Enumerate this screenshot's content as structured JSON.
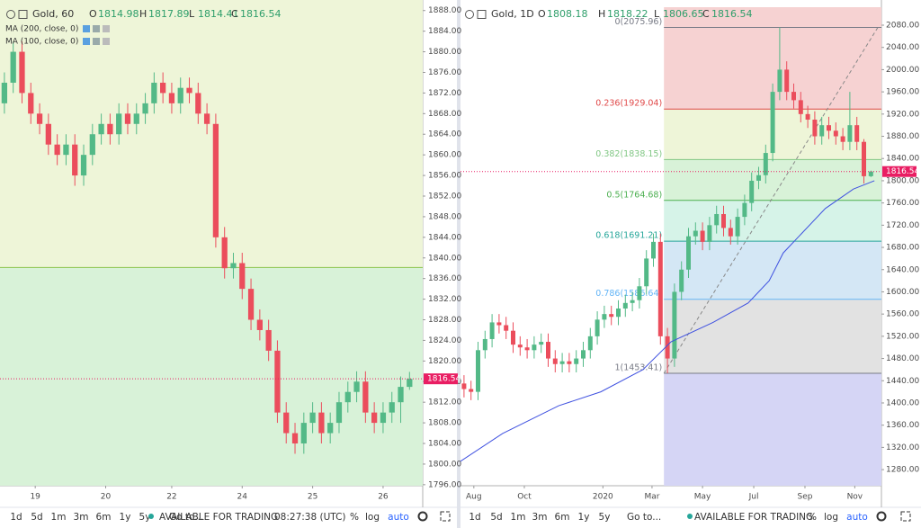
{
  "chart_data": [
    {
      "type": "candlestick",
      "title": "Gold, 60",
      "ohlc_keys": [
        "O",
        "H",
        "L",
        "C"
      ],
      "ohlc": [
        1814.98,
        1817.89,
        1814.41,
        1816.54
      ],
      "indicators": [
        "MA (200, close, 0)",
        "MA (100, close, 0)"
      ],
      "xlim": [
        0,
        48
      ],
      "xticks": [
        {
          "value": 4,
          "label": "19"
        },
        {
          "value": 12,
          "label": "20"
        },
        {
          "value": 19.5,
          "label": "22"
        },
        {
          "value": 27.5,
          "label": "24"
        },
        {
          "value": 35.5,
          "label": "25"
        },
        {
          "value": 43.5,
          "label": "26"
        }
      ],
      "ylim": [
        1795.8,
        1889
      ],
      "yticks": [
        {
          "value": 1796,
          "label": "1796.00"
        },
        {
          "value": 1800,
          "label": "1800.00"
        },
        {
          "value": 1804,
          "label": "1804.00"
        },
        {
          "value": 1808,
          "label": "1808.00"
        },
        {
          "value": 1812,
          "label": "1812.00"
        },
        {
          "value": 1816,
          "label": "1816.00"
        },
        {
          "value": 1820,
          "label": "1820.00"
        },
        {
          "value": 1824,
          "label": "1824.00"
        },
        {
          "value": 1828,
          "label": "1828.00"
        },
        {
          "value": 1832,
          "label": "1832.00"
        },
        {
          "value": 1836,
          "label": "1836.00"
        },
        {
          "value": 1840,
          "label": "1840.00"
        },
        {
          "value": 1844,
          "label": "1844.00"
        },
        {
          "value": 1848,
          "label": "1848.00"
        },
        {
          "value": 1852,
          "label": "1852.00"
        },
        {
          "value": 1856,
          "label": "1856.00"
        },
        {
          "value": 1860,
          "label": "1860.00"
        },
        {
          "value": 1864,
          "label": "1864.00"
        },
        {
          "value": 1868,
          "label": "1868.00"
        },
        {
          "value": 1872,
          "label": "1872.00"
        },
        {
          "value": 1876,
          "label": "1876.00"
        },
        {
          "value": 1880,
          "label": "1880.00"
        },
        {
          "value": 1884,
          "label": "1884.00"
        },
        {
          "value": 1888,
          "label": "1888.00"
        }
      ],
      "up_color": "#53b987",
      "down_color": "#eb4d5c",
      "last_price_color": "#e91e63",
      "open": [
        1870,
        1874,
        1880,
        1872,
        1868,
        1866,
        1862,
        1860,
        1862,
        1856,
        1860,
        1864,
        1866,
        1864,
        1868,
        1866,
        1868,
        1870,
        1874,
        1872,
        1870,
        1873,
        1872,
        1868,
        1866,
        1844,
        1838,
        1839,
        1834,
        1828,
        1826,
        1822,
        1810,
        1806,
        1804,
        1808,
        1810,
        1806,
        1808,
        1812,
        1814,
        1816,
        1810,
        1808,
        1810,
        1812,
        1814.98
      ],
      "high": [
        1876,
        1882,
        1882,
        1874,
        1870,
        1868,
        1864,
        1864,
        1864,
        1862,
        1866,
        1868,
        1868,
        1870,
        1870,
        1870,
        1872,
        1876,
        1876,
        1874,
        1875,
        1875,
        1874,
        1870,
        1868,
        1846,
        1841,
        1841,
        1836,
        1830,
        1828,
        1824,
        1812,
        1808,
        1810,
        1812,
        1812,
        1810,
        1814,
        1816,
        1818,
        1818,
        1812,
        1812,
        1814,
        1817,
        1817.89
      ],
      "low": [
        1868,
        1872,
        1870,
        1866,
        1864,
        1860,
        1858,
        1858,
        1854,
        1854,
        1858,
        1862,
        1862,
        1862,
        1864,
        1864,
        1866,
        1868,
        1870,
        1868,
        1868,
        1870,
        1866,
        1864,
        1842,
        1836,
        1836,
        1832,
        1826,
        1824,
        1820,
        1808,
        1804,
        1802,
        1802,
        1806,
        1804,
        1804,
        1806,
        1810,
        1812,
        1808,
        1806,
        1806,
        1808,
        1808,
        1814.41
      ],
      "close": [
        1874,
        1880,
        1872,
        1868,
        1866,
        1862,
        1860,
        1862,
        1856,
        1860,
        1864,
        1866,
        1864,
        1868,
        1866,
        1868,
        1870,
        1874,
        1872,
        1870,
        1873,
        1872,
        1868,
        1866,
        1844,
        1838,
        1839,
        1834,
        1828,
        1826,
        1822,
        1810,
        1806,
        1804,
        1808,
        1810,
        1806,
        1808,
        1812,
        1814,
        1816,
        1810,
        1808,
        1810,
        1812,
        1814.98,
        1816.54
      ],
      "fib_level": 1838.15,
      "fib_line_color": "#8bc34a",
      "fill_above": "#eef5d8",
      "fill_below": "#d8f2d8"
    },
    {
      "type": "candlestick",
      "title": "Gold, 1D",
      "ohlc_keys": [
        "O",
        "H",
        "L",
        "C"
      ],
      "ohlc": [
        1808.18,
        1818.22,
        1806.65,
        1816.54
      ],
      "xlim": [
        0,
        60
      ],
      "xticks": [
        {
          "value": 1.9,
          "label": "Aug"
        },
        {
          "value": 9.1,
          "label": "Oct"
        },
        {
          "value": 20.3,
          "label": "2020"
        },
        {
          "value": 27.3,
          "label": "Mar"
        },
        {
          "value": 34.5,
          "label": "May"
        },
        {
          "value": 41.8,
          "label": "Jul"
        },
        {
          "value": 49.1,
          "label": "Sep"
        },
        {
          "value": 56.2,
          "label": "Nov"
        }
      ],
      "ylim": [
        1251,
        2112.4
      ],
      "yticks": [
        {
          "value": 1280,
          "label": "1280.00"
        },
        {
          "value": 1320,
          "label": "1320.00"
        },
        {
          "value": 1360,
          "label": "1360.00"
        },
        {
          "value": 1400,
          "label": "1400.00"
        },
        {
          "value": 1440,
          "label": "1440.00"
        },
        {
          "value": 1480,
          "label": "1480.00"
        },
        {
          "value": 1520,
          "label": "1520.00"
        },
        {
          "value": 1560,
          "label": "1560.00"
        },
        {
          "value": 1600,
          "label": "1600.00"
        },
        {
          "value": 1640,
          "label": "1640.00"
        },
        {
          "value": 1680,
          "label": "1680.00"
        },
        {
          "value": 1720,
          "label": "1720.00"
        },
        {
          "value": 1760,
          "label": "1760.00"
        },
        {
          "value": 1800,
          "label": "1800.00"
        },
        {
          "value": 1840,
          "label": "1840.00"
        },
        {
          "value": 1880,
          "label": "1880.00"
        },
        {
          "value": 1920,
          "label": "1920.00"
        },
        {
          "value": 1960,
          "label": "1960.00"
        },
        {
          "value": 2000,
          "label": "2000.00"
        },
        {
          "value": 2040,
          "label": "2040.00"
        },
        {
          "value": 2080,
          "label": "2080.00"
        }
      ],
      "up_color": "#53b987",
      "down_color": "#eb4d5c",
      "last_price_color": "#e91e63",
      "open": [
        1435,
        1425,
        1420,
        1495,
        1515,
        1545,
        1540,
        1530,
        1505,
        1500,
        1495,
        1505,
        1510,
        1480,
        1470,
        1475,
        1470,
        1480,
        1495,
        1520,
        1550,
        1560,
        1555,
        1570,
        1580,
        1585,
        1610,
        1660,
        1690,
        1520,
        1480,
        1600,
        1640,
        1700,
        1710,
        1690,
        1720,
        1740,
        1715,
        1700,
        1735,
        1760,
        1800,
        1810,
        1850,
        1960,
        2000,
        1960,
        1945,
        1920,
        1910,
        1880,
        1900,
        1890,
        1880,
        1870,
        1900,
        1870,
        1808.18
      ],
      "high": [
        1450,
        1440,
        1510,
        1530,
        1560,
        1560,
        1555,
        1545,
        1520,
        1515,
        1520,
        1525,
        1525,
        1495,
        1490,
        1490,
        1495,
        1510,
        1535,
        1565,
        1575,
        1575,
        1585,
        1595,
        1600,
        1625,
        1675,
        1705,
        1705,
        1535,
        1615,
        1655,
        1715,
        1725,
        1725,
        1735,
        1755,
        1755,
        1730,
        1750,
        1775,
        1815,
        1825,
        1865,
        1975,
        2075.96,
        2015,
        1975,
        1960,
        1935,
        1925,
        1915,
        1915,
        1905,
        1895,
        1960,
        1915,
        1875,
        1818.22
      ],
      "low": [
        1410,
        1405,
        1405,
        1480,
        1500,
        1525,
        1515,
        1490,
        1485,
        1480,
        1480,
        1490,
        1465,
        1455,
        1455,
        1455,
        1455,
        1465,
        1480,
        1505,
        1535,
        1540,
        1540,
        1555,
        1565,
        1570,
        1595,
        1645,
        1505,
        1453.41,
        1465,
        1585,
        1625,
        1685,
        1675,
        1675,
        1705,
        1700,
        1685,
        1685,
        1720,
        1745,
        1785,
        1795,
        1835,
        1945,
        1945,
        1930,
        1905,
        1895,
        1865,
        1865,
        1875,
        1865,
        1855,
        1855,
        1855,
        1795,
        1806.65
      ],
      "close": [
        1425,
        1420,
        1495,
        1515,
        1545,
        1540,
        1530,
        1505,
        1500,
        1495,
        1505,
        1510,
        1480,
        1470,
        1475,
        1470,
        1480,
        1495,
        1520,
        1550,
        1560,
        1555,
        1570,
        1580,
        1585,
        1610,
        1660,
        1690,
        1520,
        1480,
        1600,
        1640,
        1700,
        1710,
        1690,
        1720,
        1740,
        1715,
        1700,
        1735,
        1760,
        1800,
        1810,
        1850,
        1960,
        2000,
        1960,
        1945,
        1920,
        1910,
        1880,
        1900,
        1890,
        1880,
        1870,
        1900,
        1870,
        1808.18,
        1816.54
      ],
      "ma": {
        "color": "#3f51e0",
        "x": [
          0,
          6,
          14,
          20,
          26,
          30,
          36,
          41,
          44,
          46,
          49,
          52,
          56,
          59
        ],
        "values": [
          1295,
          1345,
          1395,
          1420,
          1460,
          1510,
          1545,
          1580,
          1620,
          1670,
          1710,
          1750,
          1785,
          1800
        ]
      },
      "fib": {
        "start": 29,
        "diagonal_color": "#888888",
        "below_fill": "#d5d5f5",
        "levels": [
          {
            "label": "0(2075.96)",
            "value": 2075.96,
            "color": "#787b86",
            "fill": "#f6d2d2"
          },
          {
            "label": "0.236(1929.04)",
            "value": 1929.04,
            "color": "#e04848",
            "fill": "#eef5d8"
          },
          {
            "label": "0.382(1838.15)",
            "value": 1838.15,
            "color": "#81c784",
            "fill": "#d8f2d8"
          },
          {
            "label": "0.5(1764.68)",
            "value": 1764.68,
            "color": "#4caf50",
            "fill": "#d6f3e8"
          },
          {
            "label": "0.618(1691.21)",
            "value": 1691.21,
            "color": "#26a69a",
            "fill": "#d4e7f5"
          },
          {
            "label": "0.786(1586.64)",
            "value": 1586.64,
            "color": "#64b5f6",
            "fill": "#e2e2e2"
          },
          {
            "label": "1(1453.41)",
            "value": 1453.41,
            "color": "#787b86",
            "fill": "#d5d5f5"
          }
        ]
      }
    }
  ],
  "toolbars": [
    {
      "ranges": [
        "1d",
        "5d",
        "1m",
        "3m",
        "6m",
        "1y",
        "5y"
      ],
      "goto": "Go to...",
      "status": "AVAILABLE FOR TRADING",
      "clock": "08:27:38 (UTC)",
      "options": [
        "%",
        "log",
        "auto"
      ]
    },
    {
      "ranges": [
        "1d",
        "5d",
        "1m",
        "3m",
        "6m",
        "1y",
        "5y"
      ],
      "goto": "Go to...",
      "status": "AVAILABLE FOR TRADING",
      "options": [
        "%",
        "log",
        "auto"
      ]
    }
  ]
}
